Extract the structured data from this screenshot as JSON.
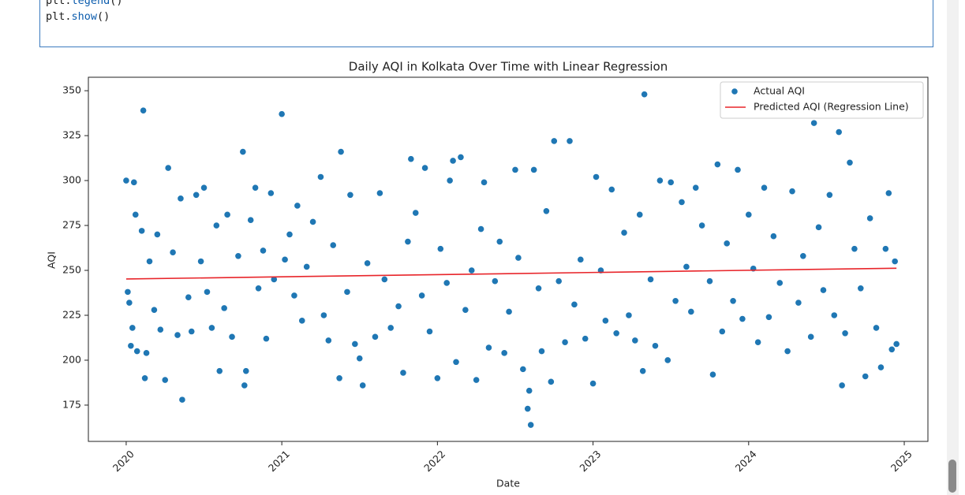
{
  "code_cell": {
    "lines": [
      {
        "obj": "plt.",
        "fn": "legend",
        "args": "()"
      },
      {
        "obj": "plt.",
        "fn": "show",
        "args": "()"
      }
    ]
  },
  "chart_data": {
    "type": "scatter",
    "title": "Daily AQI in Kolkata Over Time with Linear Regression",
    "x_label": "Date",
    "y_label": "AQI",
    "xlim": [
      2019.757,
      2025.152
    ],
    "xticks": [
      2020,
      2021,
      2022,
      2023,
      2024,
      2025
    ],
    "ylim": [
      154.8,
      357.5
    ],
    "yticks": [
      175,
      200,
      225,
      250,
      275,
      300,
      325,
      350
    ],
    "grid": false,
    "legend": "upper right",
    "series": [
      {
        "name": "Actual AQI",
        "kind": "scatter",
        "color": "#1f77b4",
        "x": [
          2020.0,
          2020.01,
          2020.02,
          2020.03,
          2020.04,
          2020.05,
          2020.06,
          2020.07,
          2020.1,
          2020.11,
          2020.12,
          2020.13,
          2020.15,
          2020.18,
          2020.2,
          2020.22,
          2020.25,
          2020.27,
          2020.3,
          2020.33,
          2020.35,
          2020.36,
          2020.4,
          2020.42,
          2020.45,
          2020.48,
          2020.5,
          2020.52,
          2020.55,
          2020.58,
          2020.6,
          2020.63,
          2020.65,
          2020.68,
          2020.72,
          2020.75,
          2020.76,
          2020.77,
          2020.8,
          2020.83,
          2020.85,
          2020.88,
          2020.9,
          2020.93,
          2020.95,
          2021.0,
          2021.02,
          2021.05,
          2021.08,
          2021.1,
          2021.13,
          2021.16,
          2021.2,
          2021.25,
          2021.27,
          2021.3,
          2021.33,
          2021.37,
          2021.38,
          2021.42,
          2021.44,
          2021.47,
          2021.5,
          2021.52,
          2021.55,
          2021.6,
          2021.63,
          2021.66,
          2021.7,
          2021.75,
          2021.78,
          2021.81,
          2021.83,
          2021.86,
          2021.9,
          2021.92,
          2021.95,
          2022.0,
          2022.02,
          2022.06,
          2022.08,
          2022.1,
          2022.12,
          2022.15,
          2022.18,
          2022.22,
          2022.25,
          2022.28,
          2022.3,
          2022.33,
          2022.37,
          2022.4,
          2022.43,
          2022.46,
          2022.5,
          2022.52,
          2022.55,
          2022.58,
          2022.59,
          2022.6,
          2022.62,
          2022.65,
          2022.67,
          2022.7,
          2022.73,
          2022.75,
          2022.78,
          2022.82,
          2022.85,
          2022.88,
          2022.92,
          2022.95,
          2023.0,
          2023.02,
          2023.05,
          2023.08,
          2023.12,
          2023.15,
          2023.2,
          2023.23,
          2023.27,
          2023.3,
          2023.32,
          2023.33,
          2023.37,
          2023.4,
          2023.43,
          2023.48,
          2023.5,
          2023.53,
          2023.57,
          2023.6,
          2023.63,
          2023.66,
          2023.7,
          2023.75,
          2023.77,
          2023.8,
          2023.83,
          2023.86,
          2023.9,
          2023.93,
          2023.96,
          2024.0,
          2024.03,
          2024.06,
          2024.1,
          2024.13,
          2024.16,
          2024.2,
          2024.25,
          2024.28,
          2024.32,
          2024.35,
          2024.4,
          2024.42,
          2024.45,
          2024.48,
          2024.52,
          2024.55,
          2024.58,
          2024.6,
          2024.62,
          2024.65,
          2024.68,
          2024.72,
          2024.75,
          2024.78,
          2024.82,
          2024.85,
          2024.88,
          2024.9,
          2024.92,
          2024.94,
          2024.95
        ],
        "values": [
          300,
          238,
          232,
          208,
          218,
          299,
          281,
          205,
          272,
          339,
          190,
          204,
          255,
          228,
          270,
          217,
          189,
          307,
          260,
          214,
          290,
          178,
          235,
          216,
          292,
          255,
          296,
          238,
          218,
          275,
          194,
          229,
          281,
          213,
          258,
          316,
          186,
          194,
          278,
          296,
          240,
          261,
          212,
          293,
          245,
          337,
          256,
          270,
          236,
          286,
          222,
          252,
          277,
          302,
          225,
          211,
          264,
          190,
          316,
          238,
          292,
          209,
          201,
          186,
          254,
          213,
          293,
          245,
          218,
          230,
          193,
          266,
          312,
          282,
          236,
          307,
          216,
          190,
          262,
          243,
          300,
          311,
          199,
          313,
          228,
          250,
          189,
          273,
          299,
          207,
          244,
          266,
          204,
          227,
          306,
          257,
          195,
          173,
          183,
          164,
          306,
          240,
          205,
          283,
          188,
          322,
          244,
          210,
          322,
          231,
          256,
          212,
          187,
          302,
          250,
          222,
          295,
          215,
          271,
          225,
          211,
          281,
          194,
          348,
          245,
          208,
          300,
          200,
          299,
          233,
          288,
          252,
          227,
          296,
          275,
          244,
          192,
          309,
          216,
          265,
          233,
          306,
          223,
          281,
          251,
          210,
          296,
          224,
          269,
          243,
          205,
          294,
          232,
          258,
          213,
          332,
          274,
          239,
          292,
          225,
          327,
          186,
          215,
          310,
          262,
          240,
          191,
          279,
          218,
          196,
          262,
          293,
          206,
          255,
          209
        ]
      },
      {
        "name": "Predicted AQI (Regression Line)",
        "kind": "line",
        "color": "#e8252a",
        "x": [
          2020.0,
          2024.95
        ],
        "values": [
          245.2,
          251.2
        ]
      }
    ]
  }
}
